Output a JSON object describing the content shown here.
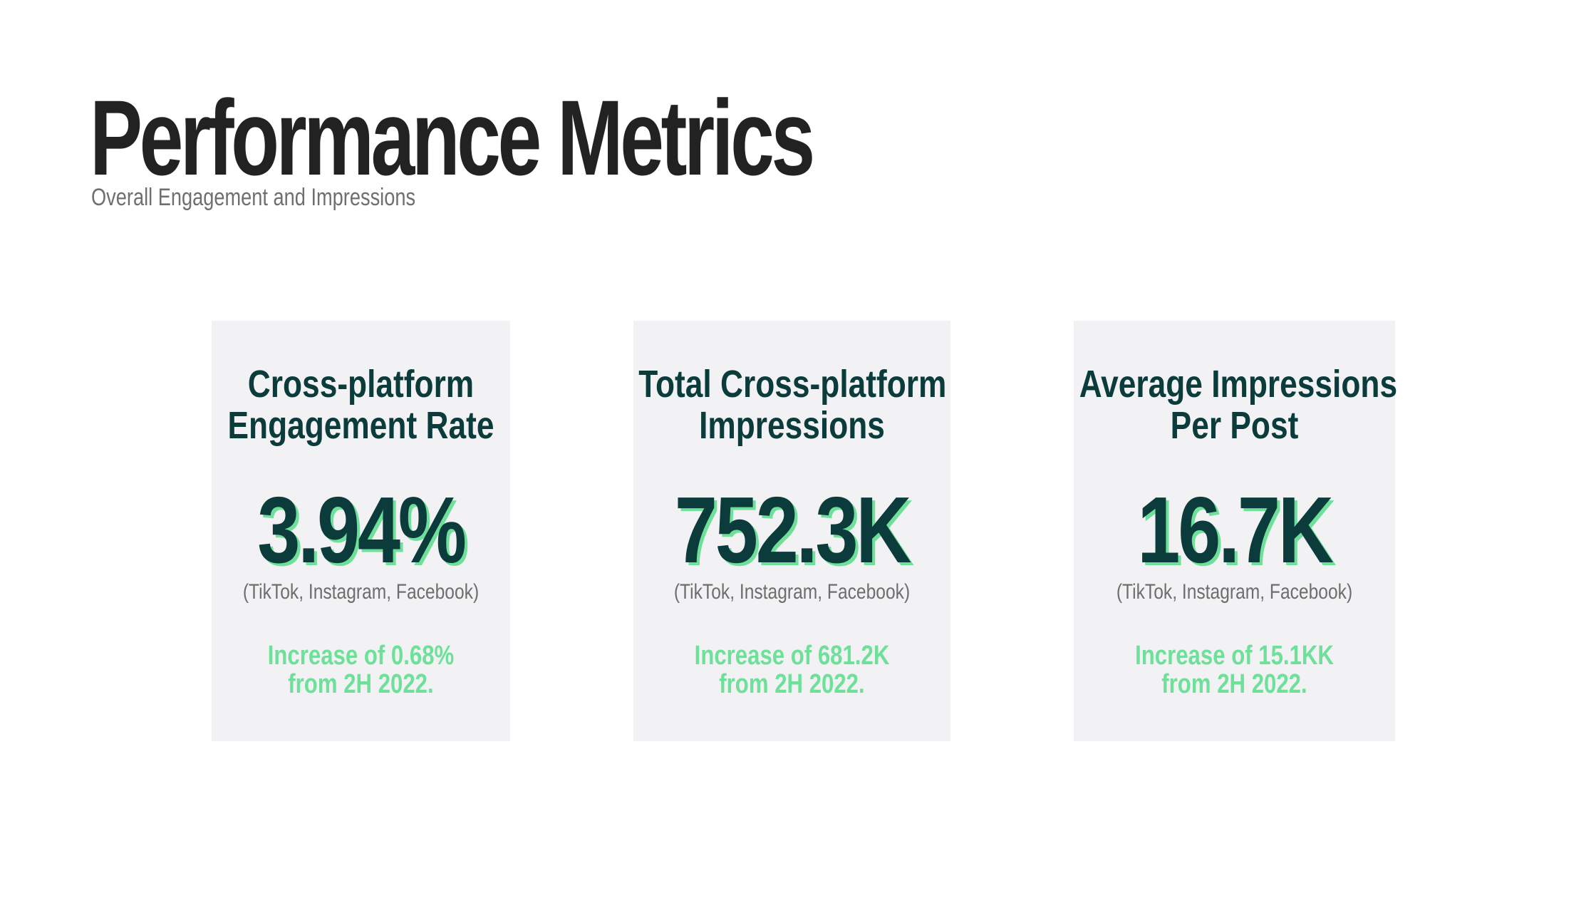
{
  "header": {
    "title": "Performance Metrics",
    "subtitle": "Overall Engagement and Impressions"
  },
  "colors": {
    "title": "#222222",
    "card_background": "#f2f2f4",
    "dark_teal": "#0b3b3b",
    "accent_green": "#6fe09a",
    "muted_text": "#6d6d6d"
  },
  "cards": [
    {
      "title_line1": "Cross-platform",
      "title_line2": "Engagement Rate",
      "value": "3.94%",
      "platforms": "(TikTok, Instagram, Facebook)",
      "change_line1": "Increase of 0.68%",
      "change_line2": "from 2H 2022."
    },
    {
      "title_line1": "Total Cross-platform",
      "title_line2": "Impressions",
      "value": "752.3K",
      "platforms": "(TikTok, Instagram, Facebook)",
      "change_line1": "Increase of 681.2K",
      "change_line2": "from 2H 2022."
    },
    {
      "title_line1": "Average Impressions",
      "title_line2": "Per Post",
      "value": "16.7K",
      "platforms": "(TikTok, Instagram, Facebook)",
      "change_line1": "Increase of 15.1KK",
      "change_line2": "from 2H 2022."
    }
  ]
}
